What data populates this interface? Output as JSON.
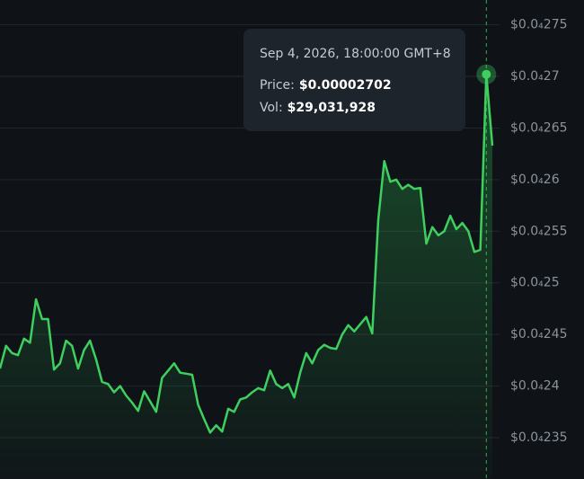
{
  "chart_data": {
    "type": "area",
    "color": "#3fcf5e",
    "values": [
      2.417e-05,
      2.439e-05,
      2.432e-05,
      2.43e-05,
      2.446e-05,
      2.442e-05,
      2.484e-05,
      2.465e-05,
      2.465e-05,
      2.416e-05,
      2.422e-05,
      2.444e-05,
      2.439e-05,
      2.417e-05,
      2.435e-05,
      2.444e-05,
      2.426e-05,
      2.404e-05,
      2.402e-05,
      2.394e-05,
      2.4e-05,
      2.391e-05,
      2.384e-05,
      2.376e-05,
      2.395e-05,
      2.385e-05,
      2.375e-05,
      2.408e-05,
      2.415e-05,
      2.422e-05,
      2.413e-05,
      2.412e-05,
      2.411e-05,
      2.382e-05,
      2.368e-05,
      2.355e-05,
      2.362e-05,
      2.356e-05,
      2.378e-05,
      2.375e-05,
      2.387e-05,
      2.389e-05,
      2.394e-05,
      2.398e-05,
      2.396e-05,
      2.415e-05,
      2.402e-05,
      2.398e-05,
      2.402e-05,
      2.389e-05,
      2.413e-05,
      2.432e-05,
      2.422e-05,
      2.435e-05,
      2.44e-05,
      2.437e-05,
      2.436e-05,
      2.45e-05,
      2.459e-05,
      2.453e-05,
      2.46e-05,
      2.467e-05,
      2.451e-05,
      2.561e-05,
      2.618e-05,
      2.598e-05,
      2.6e-05,
      2.591e-05,
      2.595e-05,
      2.591e-05,
      2.592e-05,
      2.538e-05,
      2.554e-05,
      2.546e-05,
      2.55e-05,
      2.565e-05,
      2.552e-05,
      2.558e-05,
      2.55e-05,
      2.53e-05,
      2.532e-05,
      2.702e-05,
      2.633e-05
    ],
    "ylim": [
      2.31e-05,
      2.774e-05
    ],
    "yticks": [
      {
        "value": 2.75e-05,
        "label": "$0.0₄275"
      },
      {
        "value": 2.7e-05,
        "label": "$0.0₄27"
      },
      {
        "value": 2.65e-05,
        "label": "$0.0₄265"
      },
      {
        "value": 2.6e-05,
        "label": "$0.0₄26"
      },
      {
        "value": 2.55e-05,
        "label": "$0.0₄255"
      },
      {
        "value": 2.5e-05,
        "label": "$0.0₄25"
      },
      {
        "value": 2.45e-05,
        "label": "$0.0₄245"
      },
      {
        "value": 2.4e-05,
        "label": "$0.0₄24"
      },
      {
        "value": 2.35e-05,
        "label": "$0.0₄235"
      }
    ],
    "grid": true,
    "tooltip": {
      "time": "Sep 4, 2026, 18:00:00 GMT+8",
      "price_label": "Price:",
      "price": {
        "value": 2.702e-05,
        "label": "$0.00002702"
      },
      "vol_label": "Vol:",
      "vol": "$29,031,928"
    }
  }
}
